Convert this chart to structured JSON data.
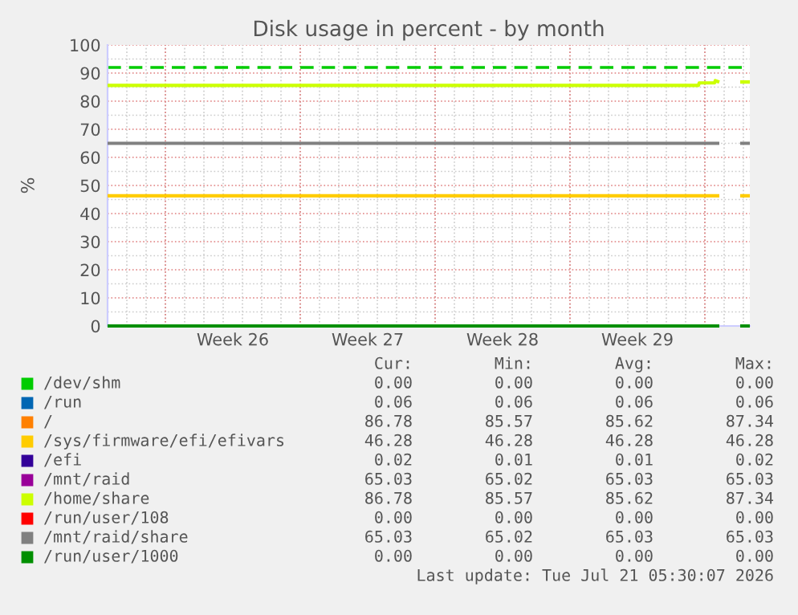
{
  "chart_data": {
    "type": "line",
    "title": "Disk usage in percent - by month",
    "ylabel": "%",
    "x": [
      "2026-06-19T00:00",
      "2026-07-19T16:00",
      "2026-07-19T17:00",
      "2026-07-20T12:00",
      "2026-07-20T13:00",
      "2026-07-20T18:00",
      "2026-07-21T06:00",
      "2026-07-21T20:00",
      "2026-07-22T08:00"
    ],
    "xlim": [
      "2026-06-19T00:00",
      "2026-07-22T08:00"
    ],
    "xticks": [
      {
        "value": "2026-06-22T00:00",
        "label": null
      },
      {
        "value": "2026-06-25T12:00",
        "label": "Week 26"
      },
      {
        "value": "2026-06-29T00:00",
        "label": null
      },
      {
        "value": "2026-07-02T12:00",
        "label": "Week 27"
      },
      {
        "value": "2026-07-06T00:00",
        "label": null
      },
      {
        "value": "2026-07-09T12:00",
        "label": "Week 28"
      },
      {
        "value": "2026-07-13T00:00",
        "label": null
      },
      {
        "value": "2026-07-16T12:00",
        "label": "Week 29"
      },
      {
        "value": "2026-07-20T00:00",
        "label": null
      }
    ],
    "ylim": [
      0,
      100
    ],
    "yticks": [
      0,
      10,
      20,
      30,
      40,
      50,
      60,
      70,
      80,
      90,
      100
    ],
    "grid": true,
    "legend": "bottom",
    "series": [
      {
        "name": "/dev/shm",
        "color": "#00cc00",
        "values": [
          null,
          null,
          null,
          null,
          null,
          null,
          null,
          null,
          null
        ]
      },
      {
        "name": "/run",
        "color": "#0066b3",
        "values": [
          null,
          null,
          null,
          null,
          null,
          null,
          null,
          null,
          null
        ]
      },
      {
        "name": "/",
        "color": "#ff8000",
        "values": [
          null,
          null,
          null,
          null,
          null,
          null,
          null,
          null,
          null
        ]
      },
      {
        "name": "/sys/firmware/efi/efivars",
        "color": "#ffcc00",
        "values": [
          46.3,
          46.3,
          46.3,
          46.3,
          46.3,
          46.3,
          null,
          46.3,
          46.3
        ]
      },
      {
        "name": "/efi",
        "color": "#330099",
        "values": [
          null,
          null,
          null,
          null,
          null,
          null,
          null,
          null,
          null
        ]
      },
      {
        "name": "/mnt/raid",
        "color": "#990099",
        "values": [
          null,
          null,
          null,
          null,
          null,
          null,
          null,
          null,
          null
        ]
      },
      {
        "name": "/home/share",
        "color": "#ccff00",
        "values": [
          85.6,
          85.6,
          86.5,
          86.5,
          87.3,
          86.8,
          null,
          86.8,
          86.8
        ]
      },
      {
        "name": "/run/user/108",
        "color": "#ff0000",
        "values": [
          null,
          null,
          null,
          null,
          null,
          null,
          null,
          null,
          null
        ]
      },
      {
        "name": "/mnt/raid/share",
        "color": "#808080",
        "values": [
          65.0,
          65.0,
          65.0,
          65.0,
          65.0,
          65.0,
          null,
          65.0,
          65.0
        ]
      },
      {
        "name": "/run/user/1000",
        "color": "#008f00",
        "values": [
          0,
          0,
          0,
          0,
          0,
          0,
          null,
          0,
          0
        ]
      }
    ],
    "ref_lines": [
      {
        "axis": "y",
        "value": 92,
        "color": "#00cc00",
        "line_style": "dashed"
      }
    ],
    "annotations": [
      "Cur:",
      "Min:",
      "Avg:",
      "Max:",
      "0.00",
      "0.00",
      "0.00",
      "0.00",
      "0.06",
      "0.06",
      "0.06",
      "0.06",
      "86.78",
      "85.57",
      "85.62",
      "87.34",
      "46.28",
      "46.28",
      "46.28",
      "46.28",
      "0.02",
      "0.01",
      "0.01",
      "0.02",
      "65.03",
      "65.02",
      "65.03",
      "65.03",
      "86.78",
      "85.57",
      "85.62",
      "87.34",
      "0.00",
      "0.00",
      "0.00",
      "0.00",
      "65.03",
      "65.02",
      "65.03",
      "65.03",
      "0.00",
      "0.00",
      "0.00",
      "0.00",
      "Last update: Tue Jul 21 05:30:07 2026"
    ]
  }
}
